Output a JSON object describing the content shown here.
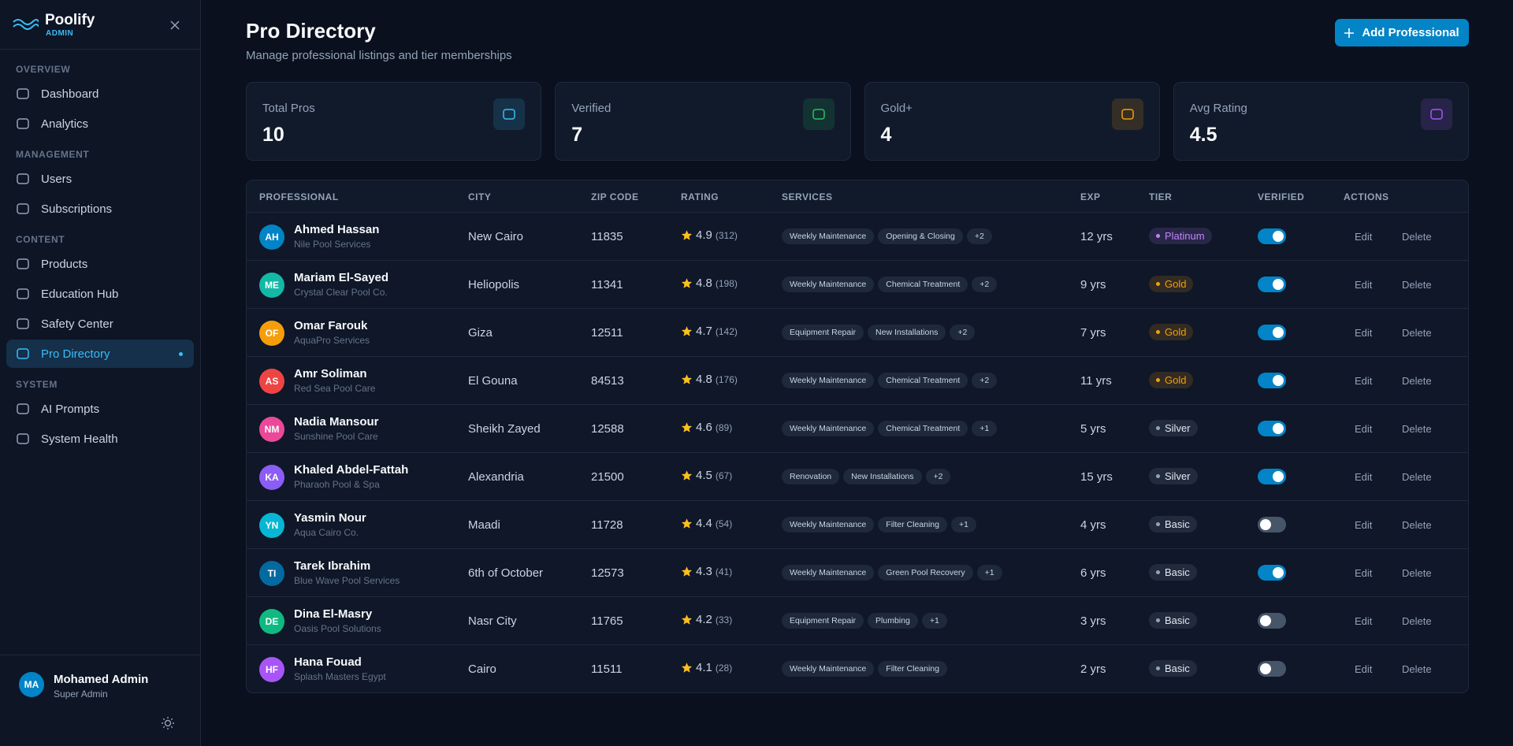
{
  "sidebar": {
    "brand": "Poolify",
    "brand_sub": "ADMIN",
    "sections": [
      {
        "title": "OVERVIEW",
        "items": [
          {
            "label": "Dashboard"
          },
          {
            "label": "Analytics"
          }
        ]
      },
      {
        "title": "MANAGEMENT",
        "items": [
          {
            "label": "Users"
          },
          {
            "label": "Subscriptions"
          }
        ]
      },
      {
        "title": "CONTENT",
        "items": [
          {
            "label": "Products"
          },
          {
            "label": "Education Hub"
          },
          {
            "label": "Safety Center"
          },
          {
            "label": "Pro Directory",
            "active": true
          }
        ]
      },
      {
        "title": "SYSTEM",
        "items": [
          {
            "label": "AI Prompts"
          },
          {
            "label": "System Health"
          }
        ]
      }
    ]
  },
  "user": {
    "initials": "MA",
    "name": "Mohamed Admin",
    "role": "Super Admin"
  },
  "header": {
    "title": "Pro Directory",
    "subtitle": "Manage professional listings and tier memberships",
    "button": "Add Professional"
  },
  "stats": [
    {
      "label": "Total Pros",
      "value": 10,
      "color": "#38bdf8"
    },
    {
      "label": "Verified",
      "value": 7,
      "color": "#22c55e"
    },
    {
      "label": "Gold+",
      "value": 4,
      "color": "#f59e0b"
    },
    {
      "label": "Avg Rating",
      "value": 4.5,
      "color": "#a855f7"
    }
  ],
  "table": {
    "columns": [
      "PROFESSIONAL",
      "CITY",
      "ZIP CODE",
      "RATING",
      "SERVICES",
      "EXP",
      "TIER",
      "VERIFIED",
      "ACTIONS"
    ],
    "actions": [
      "Edit",
      "Delete"
    ],
    "rows": [
      {
        "initials": "AH",
        "avatar_color": "#0284c7",
        "name": "Ahmed Hassan",
        "company": "Nile Pool Services",
        "city": "New Cairo",
        "zip": "11835",
        "rating": 4.9,
        "reviews": "(312)",
        "services": [
          "Weekly Maintenance",
          "Opening & Closing"
        ],
        "more": "+2",
        "exp": "12 yrs",
        "tier": "Platinum",
        "tier_color": "#c084fc",
        "verified": true
      },
      {
        "initials": "ME",
        "avatar_color": "#14b8a6",
        "name": "Mariam El-Sayed",
        "company": "Crystal Clear Pool Co.",
        "city": "Heliopolis",
        "zip": "11341",
        "rating": 4.8,
        "reviews": "(198)",
        "services": [
          "Weekly Maintenance",
          "Chemical Treatment"
        ],
        "more": "+2",
        "exp": "9 yrs",
        "tier": "Gold",
        "tier_color": "#f59e0b",
        "verified": true
      },
      {
        "initials": "OF",
        "avatar_color": "#f59e0b",
        "name": "Omar Farouk",
        "company": "AquaPro Services",
        "city": "Giza",
        "zip": "12511",
        "rating": 4.7,
        "reviews": "(142)",
        "services": [
          "Equipment Repair",
          "New Installations"
        ],
        "more": "+2",
        "exp": "7 yrs",
        "tier": "Gold",
        "tier_color": "#f59e0b",
        "verified": true
      },
      {
        "initials": "AS",
        "avatar_color": "#ef4444",
        "name": "Amr Soliman",
        "company": "Red Sea Pool Care",
        "city": "El Gouna",
        "zip": "84513",
        "rating": 4.8,
        "reviews": "(176)",
        "services": [
          "Weekly Maintenance",
          "Chemical Treatment"
        ],
        "more": "+2",
        "exp": "11 yrs",
        "tier": "Gold",
        "tier_color": "#f59e0b",
        "verified": true
      },
      {
        "initials": "NM",
        "avatar_color": "#ec4899",
        "name": "Nadia Mansour",
        "company": "Sunshine Pool Care",
        "city": "Sheikh Zayed",
        "zip": "12588",
        "rating": 4.6,
        "reviews": "(89)",
        "services": [
          "Weekly Maintenance",
          "Chemical Treatment"
        ],
        "more": "+1",
        "exp": "5 yrs",
        "tier": "Silver",
        "tier_color": "#94a3b8",
        "verified": true
      },
      {
        "initials": "KA",
        "avatar_color": "#8b5cf6",
        "name": "Khaled Abdel-Fattah",
        "company": "Pharaoh Pool & Spa",
        "city": "Alexandria",
        "zip": "21500",
        "rating": 4.5,
        "reviews": "(67)",
        "services": [
          "Renovation",
          "New Installations"
        ],
        "more": "+2",
        "exp": "15 yrs",
        "tier": "Silver",
        "tier_color": "#94a3b8",
        "verified": true
      },
      {
        "initials": "YN",
        "avatar_color": "#06b6d4",
        "name": "Yasmin Nour",
        "company": "Aqua Cairo Co.",
        "city": "Maadi",
        "zip": "11728",
        "rating": 4.4,
        "reviews": "(54)",
        "services": [
          "Weekly Maintenance",
          "Filter Cleaning"
        ],
        "more": "+1",
        "exp": "4 yrs",
        "tier": "Basic",
        "tier_color": "#94a3b8",
        "verified": false
      },
      {
        "initials": "TI",
        "avatar_color": "#0369a1",
        "name": "Tarek Ibrahim",
        "company": "Blue Wave Pool Services",
        "city": "6th of October",
        "zip": "12573",
        "rating": 4.3,
        "reviews": "(41)",
        "services": [
          "Weekly Maintenance",
          "Green Pool Recovery"
        ],
        "more": "+1",
        "exp": "6 yrs",
        "tier": "Basic",
        "tier_color": "#94a3b8",
        "verified": true
      },
      {
        "initials": "DE",
        "avatar_color": "#10b981",
        "name": "Dina El-Masry",
        "company": "Oasis Pool Solutions",
        "city": "Nasr City",
        "zip": "11765",
        "rating": 4.2,
        "reviews": "(33)",
        "services": [
          "Equipment Repair",
          "Plumbing"
        ],
        "more": "+1",
        "exp": "3 yrs",
        "tier": "Basic",
        "tier_color": "#94a3b8",
        "verified": false
      },
      {
        "initials": "HF",
        "avatar_color": "#a855f7",
        "name": "Hana Fouad",
        "company": "Splash Masters Egypt",
        "city": "Cairo",
        "zip": "11511",
        "rating": 4.1,
        "reviews": "(28)",
        "services": [
          "Weekly Maintenance",
          "Filter Cleaning"
        ],
        "exp": "2 yrs",
        "tier": "Basic",
        "tier_color": "#94a3b8",
        "verified": false
      }
    ]
  }
}
